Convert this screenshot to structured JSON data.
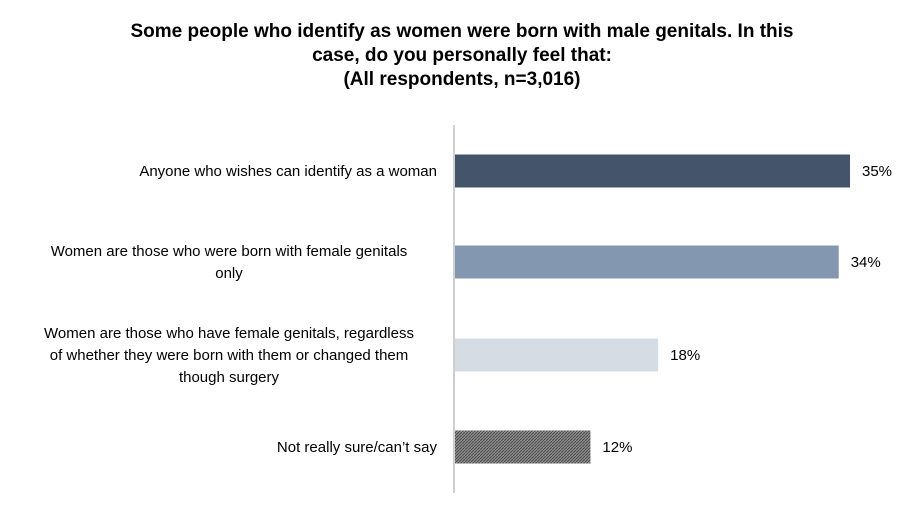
{
  "chart_data": {
    "type": "bar",
    "orientation": "horizontal",
    "title_lines": [
      "Some people who identify as women were born with male genitals. In this",
      "case, do you personally feel that:",
      "(All respondents, n=3,016)"
    ],
    "categories": [
      [
        "Anyone who wishes can identify as a woman"
      ],
      [
        "Women are those who were born with female genitals",
        "only"
      ],
      [
        "Women are those who have female genitals, regardless",
        "of whether they were born with them or changed them",
        "though surgery"
      ],
      [
        "Not really sure/can’t say"
      ]
    ],
    "values": [
      35,
      34,
      18,
      12
    ],
    "value_labels": [
      "35%",
      "34%",
      "18%",
      "12%"
    ],
    "bar_colors": [
      "#44546a",
      "#8497b0",
      "#d6dce4",
      "#7f7f7f"
    ],
    "patterned_bar_index": 3,
    "xlim": [
      0,
      40
    ],
    "grid": false,
    "legend": "none"
  }
}
